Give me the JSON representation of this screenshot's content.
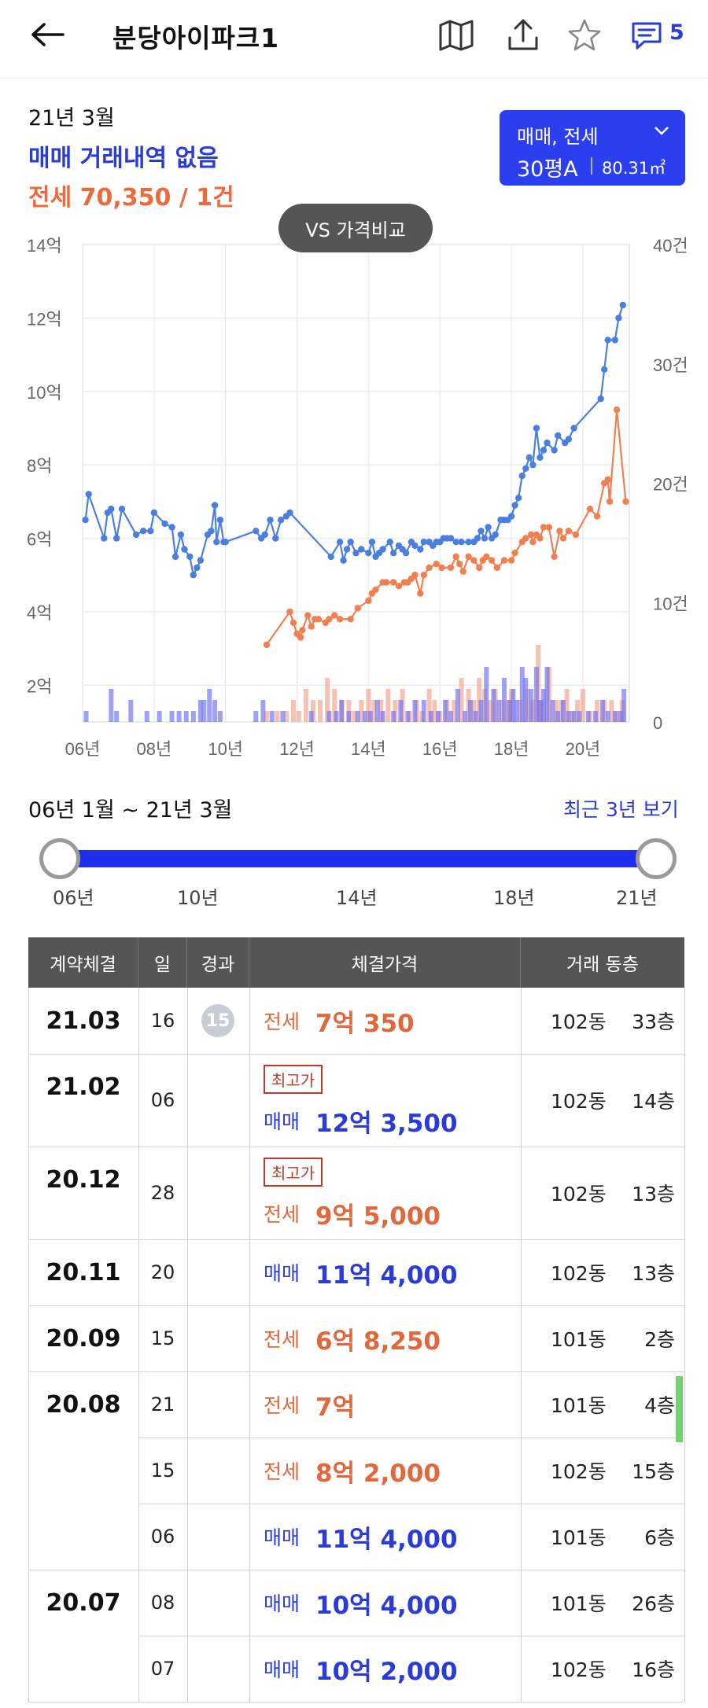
{
  "header": {
    "title": "분당아이파크1",
    "comment_count": "5"
  },
  "summary": {
    "period": "21년 3월",
    "sale_status": "매매 거래내역 없음",
    "jeonse_status": "전세 70,350 / 1건"
  },
  "type_select": {
    "type": "매매, 전세",
    "area": "30평A",
    "area_m2": "80.31㎡"
  },
  "vs_button": "VS 가격비교",
  "colors": {
    "sale": "#4a7fe0",
    "jeonse": "#f08050",
    "accent": "#2b3ff0"
  },
  "chart_data": {
    "type": "line",
    "x_ticks": [
      "06년",
      "08년",
      "10년",
      "12년",
      "14년",
      "16년",
      "18년",
      "20년"
    ],
    "y_left_ticks": [
      "2억",
      "4억",
      "6억",
      "8억",
      "10억",
      "12억",
      "14억"
    ],
    "y_right_ticks": [
      "0",
      "10건",
      "20건",
      "30건",
      "40건"
    ],
    "y_left_range": [
      1,
      14
    ],
    "y_right_range": [
      0,
      40
    ],
    "x_range": [
      2006.0,
      2021.3
    ],
    "series": [
      {
        "name": "매매",
        "color": "#4a7fe0",
        "points": [
          [
            2006.08,
            6.5
          ],
          [
            2006.17,
            7.2
          ],
          [
            2006.6,
            6.0
          ],
          [
            2006.7,
            6.7
          ],
          [
            2006.8,
            6.8
          ],
          [
            2006.95,
            6.0
          ],
          [
            2007.1,
            6.8
          ],
          [
            2007.5,
            6.1
          ],
          [
            2007.7,
            6.2
          ],
          [
            2007.9,
            6.2
          ],
          [
            2008.0,
            6.7
          ],
          [
            2008.3,
            6.4
          ],
          [
            2008.5,
            6.3
          ],
          [
            2008.6,
            5.5
          ],
          [
            2008.75,
            6.1
          ],
          [
            2008.85,
            5.7
          ],
          [
            2009.0,
            5.5
          ],
          [
            2009.1,
            5.0
          ],
          [
            2009.2,
            5.2
          ],
          [
            2009.3,
            5.4
          ],
          [
            2009.5,
            6.1
          ],
          [
            2009.6,
            6.2
          ],
          [
            2009.7,
            6.9
          ],
          [
            2009.75,
            5.9
          ],
          [
            2009.85,
            6.5
          ],
          [
            2009.95,
            5.9
          ],
          [
            2010.0,
            5.9
          ],
          [
            2010.85,
            6.2
          ],
          [
            2011.0,
            6.0
          ],
          [
            2011.1,
            6.1
          ],
          [
            2011.25,
            6.5
          ],
          [
            2011.4,
            6.0
          ],
          [
            2011.55,
            6.5
          ],
          [
            2011.7,
            6.6
          ],
          [
            2011.8,
            6.7
          ],
          [
            2012.95,
            5.5
          ],
          [
            2013.2,
            5.9
          ],
          [
            2013.3,
            5.4
          ],
          [
            2013.4,
            5.7
          ],
          [
            2013.5,
            5.9
          ],
          [
            2013.65,
            5.6
          ],
          [
            2013.8,
            5.7
          ],
          [
            2014.0,
            5.6
          ],
          [
            2014.1,
            5.9
          ],
          [
            2014.2,
            5.5
          ],
          [
            2014.3,
            5.6
          ],
          [
            2014.4,
            5.7
          ],
          [
            2014.6,
            5.9
          ],
          [
            2014.7,
            5.6
          ],
          [
            2014.85,
            5.8
          ],
          [
            2014.95,
            5.7
          ],
          [
            2015.05,
            5.6
          ],
          [
            2015.2,
            5.9
          ],
          [
            2015.3,
            5.8
          ],
          [
            2015.45,
            5.7
          ],
          [
            2015.55,
            5.9
          ],
          [
            2015.7,
            5.9
          ],
          [
            2015.8,
            5.8
          ],
          [
            2015.9,
            5.9
          ],
          [
            2016.0,
            5.9
          ],
          [
            2016.1,
            6.0
          ],
          [
            2016.2,
            6.0
          ],
          [
            2016.3,
            6.0
          ],
          [
            2016.45,
            5.9
          ],
          [
            2016.6,
            5.9
          ],
          [
            2016.8,
            5.9
          ],
          [
            2016.95,
            5.9
          ],
          [
            2017.05,
            6.0
          ],
          [
            2017.15,
            6.2
          ],
          [
            2017.25,
            6.0
          ],
          [
            2017.35,
            6.3
          ],
          [
            2017.45,
            6.0
          ],
          [
            2017.55,
            6.1
          ],
          [
            2017.7,
            6.5
          ],
          [
            2017.8,
            6.5
          ],
          [
            2017.9,
            6.5
          ],
          [
            2018.0,
            6.6
          ],
          [
            2018.1,
            6.9
          ],
          [
            2018.2,
            7.1
          ],
          [
            2018.3,
            7.7
          ],
          [
            2018.4,
            7.9
          ],
          [
            2018.5,
            8.2
          ],
          [
            2018.6,
            8.0
          ],
          [
            2018.7,
            9.0
          ],
          [
            2018.8,
            8.2
          ],
          [
            2018.9,
            8.4
          ],
          [
            2019.0,
            8.6
          ],
          [
            2019.2,
            8.4
          ],
          [
            2019.3,
            8.8
          ],
          [
            2019.5,
            8.6
          ],
          [
            2019.6,
            8.7
          ],
          [
            2019.75,
            9.0
          ],
          [
            2020.5,
            9.8
          ],
          [
            2020.6,
            10.6
          ],
          [
            2020.7,
            11.4
          ],
          [
            2020.9,
            11.4
          ],
          [
            2021.0,
            12.0
          ],
          [
            2021.12,
            12.35
          ]
        ]
      },
      {
        "name": "전세",
        "color": "#f08050",
        "points": [
          [
            2011.15,
            3.1
          ],
          [
            2011.8,
            4.0
          ],
          [
            2011.9,
            3.7
          ],
          [
            2012.0,
            3.4
          ],
          [
            2012.1,
            3.3
          ],
          [
            2012.15,
            3.5
          ],
          [
            2012.3,
            3.9
          ],
          [
            2012.4,
            3.6
          ],
          [
            2012.5,
            3.8
          ],
          [
            2012.6,
            3.8
          ],
          [
            2012.8,
            3.7
          ],
          [
            2012.9,
            3.8
          ],
          [
            2013.05,
            3.9
          ],
          [
            2013.2,
            3.8
          ],
          [
            2013.5,
            3.8
          ],
          [
            2013.7,
            4.1
          ],
          [
            2014.0,
            4.3
          ],
          [
            2014.1,
            4.5
          ],
          [
            2014.2,
            4.6
          ],
          [
            2014.4,
            4.8
          ],
          [
            2014.5,
            4.8
          ],
          [
            2014.7,
            4.8
          ],
          [
            2014.85,
            4.7
          ],
          [
            2015.0,
            4.8
          ],
          [
            2015.1,
            4.8
          ],
          [
            2015.2,
            4.9
          ],
          [
            2015.3,
            5.0
          ],
          [
            2015.45,
            4.5
          ],
          [
            2015.55,
            5.0
          ],
          [
            2015.7,
            5.2
          ],
          [
            2015.9,
            5.3
          ],
          [
            2016.05,
            5.2
          ],
          [
            2016.3,
            5.2
          ],
          [
            2016.45,
            5.5
          ],
          [
            2016.55,
            5.3
          ],
          [
            2016.65,
            5.1
          ],
          [
            2016.8,
            5.5
          ],
          [
            2016.95,
            5.4
          ],
          [
            2017.1,
            5.2
          ],
          [
            2017.2,
            5.4
          ],
          [
            2017.3,
            5.5
          ],
          [
            2017.45,
            5.4
          ],
          [
            2017.6,
            5.2
          ],
          [
            2017.8,
            5.4
          ],
          [
            2018.0,
            5.4
          ],
          [
            2018.1,
            5.6
          ],
          [
            2018.3,
            5.9
          ],
          [
            2018.4,
            6.0
          ],
          [
            2018.55,
            6.1
          ],
          [
            2018.6,
            5.9
          ],
          [
            2018.7,
            6.1
          ],
          [
            2018.8,
            6.0
          ],
          [
            2018.9,
            6.3
          ],
          [
            2019.05,
            6.3
          ],
          [
            2019.2,
            5.5
          ],
          [
            2019.35,
            6.2
          ],
          [
            2019.45,
            6.0
          ],
          [
            2019.6,
            6.2
          ],
          [
            2019.8,
            6.1
          ],
          [
            2020.2,
            6.8
          ],
          [
            2020.4,
            6.6
          ],
          [
            2020.6,
            7.5
          ],
          [
            2020.7,
            7.6
          ],
          [
            2020.75,
            7.0
          ],
          [
            2020.95,
            9.5
          ],
          [
            2021.2,
            7.0
          ]
        ]
      }
    ],
    "volume_sale": [
      [
        2006.1,
        1
      ],
      [
        2006.8,
        3
      ],
      [
        2006.95,
        1
      ],
      [
        2007.35,
        2
      ],
      [
        2007.8,
        1
      ],
      [
        2008.15,
        1
      ],
      [
        2008.5,
        1
      ],
      [
        2008.7,
        1
      ],
      [
        2008.9,
        1
      ],
      [
        2009.1,
        1
      ],
      [
        2009.3,
        2
      ],
      [
        2009.4,
        2
      ],
      [
        2009.55,
        3
      ],
      [
        2009.7,
        2
      ],
      [
        2009.85,
        1
      ],
      [
        2010.85,
        1
      ],
      [
        2011.05,
        2
      ],
      [
        2011.3,
        1
      ],
      [
        2011.6,
        1
      ],
      [
        2012.4,
        1
      ],
      [
        2012.9,
        1
      ],
      [
        2013.1,
        1
      ],
      [
        2013.25,
        2
      ],
      [
        2013.45,
        1
      ],
      [
        2013.7,
        1
      ],
      [
        2013.9,
        1
      ],
      [
        2014.05,
        1
      ],
      [
        2014.25,
        2
      ],
      [
        2014.4,
        1
      ],
      [
        2014.7,
        1
      ],
      [
        2014.9,
        2
      ],
      [
        2015.1,
        1
      ],
      [
        2015.3,
        2
      ],
      [
        2015.55,
        2
      ],
      [
        2015.75,
        1
      ],
      [
        2015.95,
        1
      ],
      [
        2016.15,
        2
      ],
      [
        2016.3,
        1
      ],
      [
        2016.5,
        3
      ],
      [
        2016.7,
        1
      ],
      [
        2016.85,
        2
      ],
      [
        2017.0,
        1
      ],
      [
        2017.15,
        2
      ],
      [
        2017.3,
        5
      ],
      [
        2017.5,
        3
      ],
      [
        2017.65,
        2
      ],
      [
        2017.8,
        4
      ],
      [
        2017.95,
        2
      ],
      [
        2018.05,
        3
      ],
      [
        2018.15,
        2
      ],
      [
        2018.3,
        5
      ],
      [
        2018.4,
        4
      ],
      [
        2018.55,
        3
      ],
      [
        2018.7,
        5
      ],
      [
        2018.8,
        2
      ],
      [
        2018.9,
        3
      ],
      [
        2019.0,
        5
      ],
      [
        2019.15,
        2
      ],
      [
        2019.3,
        1
      ],
      [
        2019.45,
        2
      ],
      [
        2019.6,
        1
      ],
      [
        2019.75,
        1
      ],
      [
        2019.9,
        1
      ],
      [
        2020.15,
        1
      ],
      [
        2020.35,
        1
      ],
      [
        2020.55,
        2
      ],
      [
        2020.7,
        1
      ],
      [
        2020.9,
        1
      ],
      [
        2021.05,
        1
      ],
      [
        2021.15,
        3
      ]
    ],
    "volume_jeonse": [
      [
        2011.15,
        1
      ],
      [
        2011.45,
        1
      ],
      [
        2011.7,
        1
      ],
      [
        2011.9,
        2
      ],
      [
        2012.05,
        1
      ],
      [
        2012.25,
        3
      ],
      [
        2012.45,
        2
      ],
      [
        2012.65,
        2
      ],
      [
        2012.85,
        4
      ],
      [
        2013.05,
        3
      ],
      [
        2013.25,
        2
      ],
      [
        2013.45,
        2
      ],
      [
        2013.6,
        1
      ],
      [
        2013.8,
        2
      ],
      [
        2014.0,
        3
      ],
      [
        2014.15,
        2
      ],
      [
        2014.35,
        2
      ],
      [
        2014.55,
        3
      ],
      [
        2014.75,
        2
      ],
      [
        2014.95,
        3
      ],
      [
        2015.15,
        1
      ],
      [
        2015.35,
        2
      ],
      [
        2015.5,
        1
      ],
      [
        2015.7,
        3
      ],
      [
        2015.85,
        2
      ],
      [
        2016.0,
        1
      ],
      [
        2016.2,
        2
      ],
      [
        2016.4,
        2
      ],
      [
        2016.6,
        4
      ],
      [
        2016.8,
        3
      ],
      [
        2016.95,
        2
      ],
      [
        2017.1,
        4
      ],
      [
        2017.25,
        3
      ],
      [
        2017.4,
        2
      ],
      [
        2017.55,
        3
      ],
      [
        2017.75,
        2
      ],
      [
        2017.9,
        2
      ],
      [
        2018.0,
        3
      ],
      [
        2018.25,
        2
      ],
      [
        2018.45,
        3
      ],
      [
        2018.6,
        2
      ],
      [
        2018.75,
        7
      ],
      [
        2018.85,
        2
      ],
      [
        2019.05,
        5
      ],
      [
        2019.25,
        2
      ],
      [
        2019.4,
        2
      ],
      [
        2019.55,
        3
      ],
      [
        2019.7,
        1
      ],
      [
        2019.85,
        2
      ],
      [
        2020.0,
        3
      ],
      [
        2020.2,
        1
      ],
      [
        2020.4,
        2
      ],
      [
        2020.6,
        2
      ],
      [
        2020.8,
        2
      ],
      [
        2020.95,
        1
      ],
      [
        2021.1,
        2
      ]
    ]
  },
  "range": {
    "label": "06년 1월 ~ 21년 3월",
    "recent_link": "최근 3년 보기",
    "ticks": [
      "06년",
      "10년",
      "14년",
      "18년",
      "21년"
    ]
  },
  "table": {
    "headers": [
      "계약체결",
      "일",
      "경과",
      "체결가격",
      "거래 동층"
    ],
    "groups": [
      {
        "date": "21.03",
        "rows": [
          {
            "day": "16",
            "elapsed": "15",
            "kind": "전세",
            "price": "7억 350",
            "badge": "",
            "dong": "102동",
            "floor": "33층"
          }
        ]
      },
      {
        "date": "21.02",
        "rows": [
          {
            "day": "06",
            "elapsed": "",
            "kind": "매매",
            "price": "12억 3,500",
            "badge": "최고가",
            "dong": "102동",
            "floor": "14층"
          }
        ]
      },
      {
        "date": "20.12",
        "rows": [
          {
            "day": "28",
            "elapsed": "",
            "kind": "전세",
            "price": "9억 5,000",
            "badge": "최고가",
            "dong": "102동",
            "floor": "13층"
          }
        ]
      },
      {
        "date": "20.11",
        "rows": [
          {
            "day": "20",
            "elapsed": "",
            "kind": "매매",
            "price": "11억 4,000",
            "badge": "",
            "dong": "102동",
            "floor": "13층"
          }
        ]
      },
      {
        "date": "20.09",
        "rows": [
          {
            "day": "15",
            "elapsed": "",
            "kind": "전세",
            "price": "6억 8,250",
            "badge": "",
            "dong": "101동",
            "floor": "2층"
          }
        ]
      },
      {
        "date": "20.08",
        "rows": [
          {
            "day": "21",
            "elapsed": "",
            "kind": "전세",
            "price": "7억",
            "badge": "",
            "dong": "101동",
            "floor": "4층"
          },
          {
            "day": "15",
            "elapsed": "",
            "kind": "전세",
            "price": "8억 2,000",
            "badge": "",
            "dong": "102동",
            "floor": "15층"
          },
          {
            "day": "06",
            "elapsed": "",
            "kind": "매매",
            "price": "11억 4,000",
            "badge": "",
            "dong": "101동",
            "floor": "6층"
          }
        ]
      },
      {
        "date": "20.07",
        "rows": [
          {
            "day": "08",
            "elapsed": "",
            "kind": "매매",
            "price": "10억 4,000",
            "badge": "",
            "dong": "101동",
            "floor": "26층"
          },
          {
            "day": "07",
            "elapsed": "",
            "kind": "매매",
            "price": "10억 2,000",
            "badge": "",
            "dong": "102동",
            "floor": "16층"
          }
        ]
      }
    ]
  }
}
